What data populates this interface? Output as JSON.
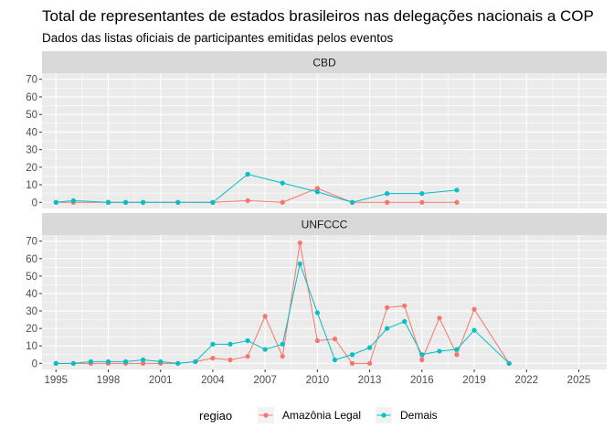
{
  "chart_data": {
    "type": "line",
    "title": "Total de representantes de estados brasileiros nas delegações nacionais a COP",
    "subtitle": "Dados das listas oficiais de participantes emitidas pelos eventos",
    "xlabel": "",
    "ylabel": "",
    "xlim": [
      1994.2,
      2026.6
    ],
    "ylim": [
      -3.5,
      73.5
    ],
    "x_ticks": [
      1995,
      1998,
      2001,
      2004,
      2007,
      2010,
      2013,
      2016,
      2019,
      2022,
      2025
    ],
    "y_ticks": [
      0,
      10,
      20,
      30,
      40,
      50,
      60,
      70
    ],
    "grid": true,
    "legend": {
      "title": "regiao",
      "position": "bottom",
      "entries": [
        {
          "name": "Amazônia Legal",
          "color": "#F8766D"
        },
        {
          "name": "Demais",
          "color": "#00BFC4"
        }
      ]
    },
    "panels": [
      {
        "strip": "CBD",
        "series": [
          {
            "name": "Amazônia Legal",
            "color": "#F8766D",
            "x": [
              1995,
              1996,
              1998,
              1999,
              2000,
              2002,
              2004,
              2006,
              2008,
              2010,
              2012,
              2014,
              2016,
              2018
            ],
            "y": [
              0,
              0,
              0,
              0,
              0,
              0,
              0,
              1,
              0,
              8,
              0,
              0,
              0,
              0
            ]
          },
          {
            "name": "Demais",
            "color": "#00BFC4",
            "x": [
              1995,
              1996,
              1998,
              1999,
              2000,
              2002,
              2004,
              2006,
              2008,
              2010,
              2012,
              2014,
              2016,
              2018
            ],
            "y": [
              0,
              1,
              0,
              0,
              0,
              0,
              0,
              16,
              11,
              6,
              0,
              5,
              5,
              7
            ]
          }
        ]
      },
      {
        "strip": "UNFCCC",
        "series": [
          {
            "name": "Amazônia Legal",
            "color": "#F8766D",
            "x": [
              1995,
              1996,
              1997,
              1998,
              1999,
              2000,
              2001,
              2002,
              2003,
              2004,
              2005,
              2006,
              2007,
              2008,
              2009,
              2010,
              2011,
              2012,
              2013,
              2014,
              2015,
              2016,
              2017,
              2018,
              2019,
              2021
            ],
            "y": [
              0,
              0,
              0,
              0,
              0,
              0,
              0,
              0,
              1,
              3,
              2,
              4,
              27,
              4,
              69,
              13,
              14,
              0,
              0,
              32,
              33,
              2,
              26,
              5,
              31,
              0
            ]
          },
          {
            "name": "Demais",
            "color": "#00BFC4",
            "x": [
              1995,
              1996,
              1997,
              1998,
              1999,
              2000,
              2001,
              2002,
              2003,
              2004,
              2005,
              2006,
              2007,
              2008,
              2009,
              2010,
              2011,
              2012,
              2013,
              2014,
              2015,
              2016,
              2017,
              2018,
              2019,
              2021
            ],
            "y": [
              0,
              0,
              1,
              1,
              1,
              2,
              1,
              0,
              1,
              11,
              11,
              13,
              8,
              11,
              57,
              29,
              2,
              5,
              9,
              20,
              24,
              5,
              7,
              8,
              19,
              0
            ]
          }
        ]
      }
    ]
  }
}
